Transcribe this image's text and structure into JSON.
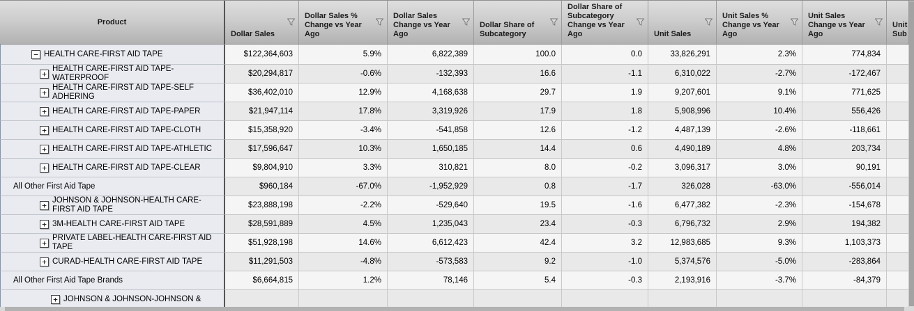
{
  "table": {
    "columns": [
      {
        "label": "Product",
        "filter": false
      },
      {
        "label": "Dollar Sales",
        "filter": true
      },
      {
        "label": "Dollar Sales % Change vs Year Ago",
        "filter": true
      },
      {
        "label": "Dollar Sales Change vs Year Ago",
        "filter": true
      },
      {
        "label": "Dollar Share of Subcategory",
        "filter": true
      },
      {
        "label": "Dollar Share of Subcategory Change vs Year Ago",
        "filter": true
      },
      {
        "label": "Unit Sales",
        "filter": true
      },
      {
        "label": "Unit Sales % Change vs Year Ago",
        "filter": true
      },
      {
        "label": "Unit Sales Change vs Year Ago",
        "filter": true
      },
      {
        "label": "Unit Sub",
        "filter": false
      }
    ],
    "rows": [
      {
        "product": "HEALTH CARE-FIRST AID TAPE",
        "level": 1,
        "expander": "collapse",
        "values": [
          "$122,364,603",
          "5.9%",
          "6,822,389",
          "100.0",
          "0.0",
          "33,826,291",
          "2.3%",
          "774,834",
          ""
        ]
      },
      {
        "product": "HEALTH CARE-FIRST AID TAPE-WATERPROOF",
        "level": 2,
        "expander": "expand",
        "values": [
          "$20,294,817",
          "-0.6%",
          "-132,393",
          "16.6",
          "-1.1",
          "6,310,022",
          "-2.7%",
          "-172,467",
          ""
        ]
      },
      {
        "product": "HEALTH CARE-FIRST AID TAPE-SELF ADHERING",
        "level": 2,
        "expander": "expand",
        "values": [
          "$36,402,010",
          "12.9%",
          "4,168,638",
          "29.7",
          "1.9",
          "9,207,601",
          "9.1%",
          "771,625",
          ""
        ]
      },
      {
        "product": "HEALTH CARE-FIRST AID TAPE-PAPER",
        "level": 2,
        "expander": "expand",
        "values": [
          "$21,947,114",
          "17.8%",
          "3,319,926",
          "17.9",
          "1.8",
          "5,908,996",
          "10.4%",
          "556,426",
          ""
        ]
      },
      {
        "product": "HEALTH CARE-FIRST AID TAPE-CLOTH",
        "level": 2,
        "expander": "expand",
        "values": [
          "$15,358,920",
          "-3.4%",
          "-541,858",
          "12.6",
          "-1.2",
          "4,487,139",
          "-2.6%",
          "-118,661",
          ""
        ]
      },
      {
        "product": "HEALTH CARE-FIRST AID TAPE-ATHLETIC",
        "level": 2,
        "expander": "expand",
        "values": [
          "$17,596,647",
          "10.3%",
          "1,650,185",
          "14.4",
          "0.6",
          "4,490,189",
          "4.8%",
          "203,734",
          ""
        ]
      },
      {
        "product": "HEALTH CARE-FIRST AID TAPE-CLEAR",
        "level": 2,
        "expander": "expand",
        "values": [
          "$9,804,910",
          "3.3%",
          "310,821",
          "8.0",
          "-0.2",
          "3,096,317",
          "3.0%",
          "90,191",
          ""
        ]
      },
      {
        "product": "All Other First Aid Tape",
        "level": 0,
        "expander": "none",
        "values": [
          "$960,184",
          "-67.0%",
          "-1,952,929",
          "0.8",
          "-1.7",
          "326,028",
          "-63.0%",
          "-556,014",
          ""
        ]
      },
      {
        "product": "JOHNSON & JOHNSON-HEALTH CARE-FIRST AID TAPE",
        "level": 2,
        "expander": "expand",
        "values": [
          "$23,888,198",
          "-2.2%",
          "-529,640",
          "19.5",
          "-1.6",
          "6,477,382",
          "-2.3%",
          "-154,678",
          ""
        ]
      },
      {
        "product": "3M-HEALTH CARE-FIRST AID TAPE",
        "level": 2,
        "expander": "expand",
        "values": [
          "$28,591,889",
          "4.5%",
          "1,235,043",
          "23.4",
          "-0.3",
          "6,796,732",
          "2.9%",
          "194,382",
          ""
        ]
      },
      {
        "product": "PRIVATE LABEL-HEALTH CARE-FIRST AID TAPE",
        "level": 2,
        "expander": "expand",
        "values": [
          "$51,928,198",
          "14.6%",
          "6,612,423",
          "42.4",
          "3.2",
          "12,983,685",
          "9.3%",
          "1,103,373",
          ""
        ]
      },
      {
        "product": "CURAD-HEALTH CARE-FIRST AID TAPE",
        "level": 2,
        "expander": "expand",
        "values": [
          "$11,291,503",
          "-4.8%",
          "-573,583",
          "9.2",
          "-1.0",
          "5,374,576",
          "-5.0%",
          "-283,864",
          ""
        ]
      },
      {
        "product": "All Other First Aid Tape Brands",
        "level": 0,
        "expander": "none",
        "values": [
          "$6,664,815",
          "1.2%",
          "78,146",
          "5.4",
          "-0.3",
          "2,193,916",
          "-3.7%",
          "-84,379",
          ""
        ]
      },
      {
        "product": "JOHNSON & JOHNSON-JOHNSON &",
        "level": 3,
        "expander": "expand",
        "values": [
          "",
          "",
          "",
          "",
          "",
          "",
          "",
          "",
          ""
        ]
      }
    ]
  },
  "icons": {
    "filter": "filter-funnel-icon",
    "expand_glyph": "+",
    "collapse_glyph": "−"
  },
  "colors": {
    "header_top": "#dedede",
    "header_bottom": "#b2b2b2",
    "product_cell_bg": "#e9ebf1",
    "row_light": "#f5f5f5",
    "row_dark": "#e9e9e9",
    "product_divider": "#555555",
    "grid_line": "#c9c9c9",
    "left_accent": "#7d94b5",
    "scrollbar_thumb": "#a3a3a3"
  }
}
